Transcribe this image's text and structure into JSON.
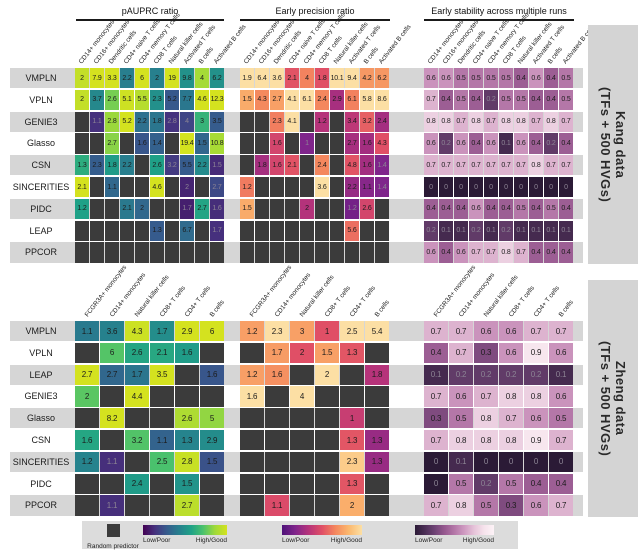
{
  "colors": {
    "blank_cell": "#3b3b3b",
    "row_band": "#d6d6d6",
    "side_block": "#d4d4d4",
    "legend_band": "#dcdcdc",
    "title_underline": "#1a1a1a"
  },
  "legend": {
    "random_predictor_label": "Random predictor",
    "scales": [
      {
        "name": "viridis",
        "low_label": "Low/Poor",
        "high_label": "High/Good",
        "stops": [
          "#440154",
          "#46327e",
          "#365c8d",
          "#277f8e",
          "#1fa187",
          "#4ac16d",
          "#a0da39",
          "#d4e21f"
        ]
      },
      {
        "name": "warm",
        "low_label": "Low/Poor",
        "high_label": "High/Good",
        "stops": [
          "#4e1279",
          "#80258b",
          "#b6337a",
          "#e04f66",
          "#f4875e",
          "#fbb86e",
          "#fcdfa4"
        ]
      },
      {
        "name": "pink",
        "low_label": "Low/Poor",
        "high_label": "High/Good",
        "stops": [
          "#2b1a36",
          "#4b2e55",
          "#6f4375",
          "#96588f",
          "#b477a8",
          "#cf9ac1",
          "#e6c4d9",
          "#f6e3ec",
          "#fdf3f7"
        ]
      }
    ]
  },
  "chart_data": [
    {
      "type": "heatmap",
      "dataset_label_line1": "Kang data",
      "dataset_label_line2": "(TFs + 500 HVGs)",
      "columns": [
        "CD14+ monocytes",
        "CD16+ monocytes",
        "Dendritic cells",
        "CD4+ naive T cells",
        "CD4+ memory T cells",
        "CD8 T cells",
        "Natural killer cells",
        "Activated T cells",
        "B cells",
        "Activated B cells"
      ],
      "rows": [
        "VMPLN",
        "VPLN",
        "GENIE3",
        "Glasso",
        "CSN",
        "SINCERITIES",
        "PIDC",
        "LEAP",
        "PPCOR"
      ],
      "panels": [
        {
          "title": "pAUPRC ratio",
          "scale": "viridis",
          "normalize": "column-max",
          "values": [
            [
              2,
              7.9,
              3.3,
              2.2,
              6,
              2,
              19,
              9.8,
              4,
              6.2
            ],
            [
              2,
              3.7,
              2.6,
              5.1,
              5.5,
              2.3,
              5.2,
              7.7,
              4.6,
              12.3
            ],
            [
              null,
              1.1,
              2.8,
              5.2,
              2.2,
              1.8,
              2.8,
              4,
              3,
              3.5
            ],
            [
              null,
              null,
              2.7,
              null,
              1.6,
              1.4,
              null,
              19.4,
              1.5,
              10.8
            ],
            [
              1.3,
              2.3,
              1.8,
              2.2,
              null,
              2.6,
              3.2,
              5.5,
              2.2,
              1.5
            ],
            [
              2.1,
              null,
              1.1,
              null,
              null,
              4.6,
              null,
              2,
              null,
              2.7
            ],
            [
              1.2,
              null,
              null,
              2.1,
              2,
              null,
              null,
              1.7,
              2.7,
              1.6
            ],
            [
              null,
              null,
              null,
              null,
              null,
              1.3,
              null,
              6.7,
              null,
              1.7
            ],
            [
              null,
              null,
              null,
              null,
              null,
              null,
              null,
              null,
              null,
              null
            ]
          ]
        },
        {
          "title": "Early precision ratio",
          "scale": "warm",
          "normalize": "column-max",
          "values": [
            [
              1.9,
              6.4,
              3.6,
              2.1,
              4,
              1.8,
              10.1,
              9.4,
              4.2,
              6.2
            ],
            [
              1.5,
              4.3,
              2.7,
              4.1,
              6.1,
              2.4,
              2.9,
              6.1,
              5.8,
              8.6
            ],
            [
              null,
              null,
              2.3,
              4.1,
              null,
              1.2,
              null,
              3.4,
              3.2,
              2.4
            ],
            [
              null,
              null,
              1.6,
              null,
              1,
              null,
              null,
              2.7,
              1.6,
              4.3
            ],
            [
              null,
              1.8,
              1.6,
              2.1,
              null,
              2.4,
              null,
              4.8,
              1.6,
              1.4
            ],
            [
              1.2,
              null,
              null,
              null,
              null,
              3.6,
              null,
              2.2,
              1.1,
              1.4
            ],
            [
              1.5,
              null,
              null,
              null,
              2,
              null,
              null,
              1.2,
              2.6,
              null
            ],
            [
              null,
              null,
              null,
              null,
              null,
              null,
              null,
              5.6,
              null,
              null
            ],
            [
              null,
              null,
              null,
              null,
              null,
              null,
              null,
              null,
              null,
              null
            ]
          ]
        },
        {
          "title": "Early stability across multiple runs",
          "scale": "pink",
          "normalize": "unit",
          "values": [
            [
              0.6,
              0.6,
              0.5,
              0.5,
              0.5,
              0.5,
              0.4,
              0.6,
              0.4,
              0.5
            ],
            [
              0.7,
              0.4,
              0.5,
              0.4,
              0.2,
              0.5,
              0.5,
              0.4,
              0.4,
              0.5
            ],
            [
              0.8,
              0.8,
              0.7,
              0.8,
              0.7,
              0.8,
              0.8,
              0.7,
              0.8,
              0.7
            ],
            [
              0.6,
              0.2,
              0.6,
              0.4,
              0.6,
              0.1,
              0.6,
              0.4,
              0.2,
              0.4
            ],
            [
              0.7,
              0.7,
              0.7,
              0.7,
              0.7,
              0.7,
              0.7,
              0.8,
              0.7,
              0.7
            ],
            [
              0,
              0,
              0,
              0,
              0,
              0,
              0,
              0,
              0,
              0
            ],
            [
              0.4,
              0.4,
              0.4,
              0.6,
              0.4,
              0.4,
              0.5,
              0.4,
              0.5,
              0.4
            ],
            [
              0.2,
              0.1,
              0.1,
              0.2,
              0.1,
              0.2,
              0.1,
              0.1,
              0.1,
              0.1
            ],
            [
              0.6,
              0.4,
              0.6,
              0.7,
              0.7,
              0.8,
              0.7,
              0.4,
              0.4,
              0.4
            ]
          ]
        }
      ]
    },
    {
      "type": "heatmap",
      "dataset_label_line1": "Zheng data",
      "dataset_label_line2": "(TFs + 500 HVGs)",
      "columns": [
        "FCGR3A+ monocytes",
        "CD14+ monocytes",
        "Natural killer cells",
        "CD8+ T cells",
        "CD4+ T cells",
        "B cells"
      ],
      "rows": [
        "VMPLN",
        "VPLN",
        "LEAP",
        "GENIE3",
        "Glasso",
        "CSN",
        "SINCERITIES",
        "PIDC",
        "PPCOR"
      ],
      "panels": [
        {
          "title": "pAUPRC ratio",
          "scale": "viridis",
          "normalize": "column-max",
          "values": [
            [
              1.1,
              3.6,
              4.3,
              1.7,
              2.9,
              6
            ],
            [
              null,
              6,
              2.6,
              2.1,
              1.6,
              null
            ],
            [
              2.7,
              2.7,
              1.7,
              3.5,
              null,
              1.6
            ],
            [
              2,
              null,
              4.4,
              null,
              null,
              null
            ],
            [
              null,
              8.2,
              null,
              null,
              2.6,
              5
            ],
            [
              1.6,
              null,
              3.2,
              1.1,
              1.3,
              2.9
            ],
            [
              1.2,
              1.1,
              null,
              2.5,
              2.8,
              1.5
            ],
            [
              null,
              null,
              2.4,
              null,
              1.5,
              null
            ],
            [
              null,
              1.1,
              null,
              null,
              2.7,
              null
            ]
          ]
        },
        {
          "title": "Early precision ratio",
          "scale": "warm",
          "normalize": "column-max",
          "values": [
            [
              1.2,
              2.3,
              3,
              1,
              2.5,
              5.4
            ],
            [
              null,
              1.7,
              2,
              1.5,
              1.3,
              null
            ],
            [
              1.2,
              1.6,
              null,
              2,
              null,
              1.8
            ],
            [
              1.6,
              null,
              4,
              null,
              null,
              null
            ],
            [
              null,
              null,
              null,
              null,
              1,
              null
            ],
            [
              null,
              null,
              null,
              null,
              1.3,
              1.3
            ],
            [
              null,
              null,
              null,
              null,
              2.3,
              1.3
            ],
            [
              null,
              null,
              null,
              null,
              1.3,
              null
            ],
            [
              null,
              1.1,
              null,
              null,
              2,
              null
            ]
          ]
        },
        {
          "title": "Early stability across multiple runs",
          "scale": "pink",
          "normalize": "unit",
          "values": [
            [
              0.7,
              0.7,
              0.6,
              0.6,
              0.7,
              0.7
            ],
            [
              0.4,
              0.7,
              0.3,
              0.6,
              0.9,
              0.6
            ],
            [
              0.1,
              0.2,
              0.2,
              0.2,
              0.2,
              0.1
            ],
            [
              0.7,
              0.6,
              0.7,
              0.8,
              0.8,
              0.6
            ],
            [
              0.3,
              0.5,
              0.8,
              0.7,
              0.6,
              0.5
            ],
            [
              0.7,
              0.8,
              0.8,
              0.8,
              0.9,
              0.7
            ],
            [
              0,
              0.1,
              0,
              0,
              0,
              0
            ],
            [
              0,
              0.5,
              0.2,
              0.5,
              0.4,
              0.4
            ],
            [
              0.7,
              0.8,
              0.5,
              0.3,
              0.6,
              0.7
            ]
          ]
        }
      ]
    }
  ]
}
